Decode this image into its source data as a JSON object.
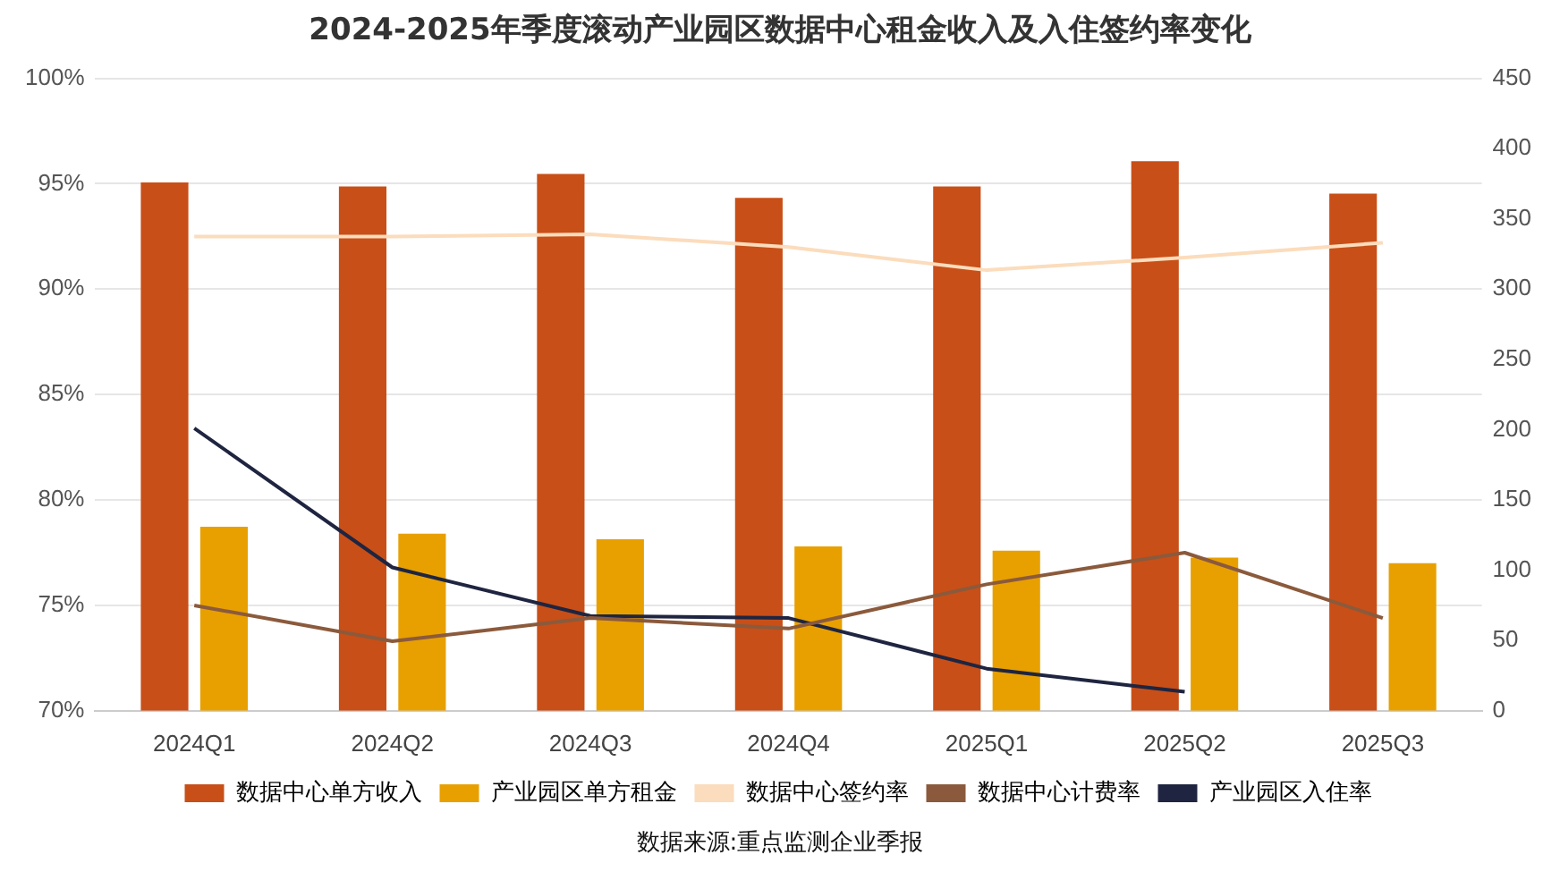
{
  "chart_data": {
    "type": "bar",
    "title": "2024-2025年季度滚动产业园区数据中心租金收入及入住签约率变化",
    "categories": [
      "2024Q1",
      "2024Q2",
      "2024Q3",
      "2024Q4",
      "2025Q1",
      "2025Q2",
      "2025Q3"
    ],
    "series": [
      {
        "name": "数据中心单方收入",
        "axis": "y2",
        "color": "#c84f18",
        "values": [
          376,
          373,
          382,
          365,
          373,
          391,
          368
        ]
      },
      {
        "name": "产业园区单方租金",
        "axis": "y2",
        "color": "#e8a000",
        "values": [
          131,
          126,
          122,
          117,
          114,
          109,
          105
        ]
      },
      {
        "name": "数据中心签约率",
        "type": "line",
        "color": "#fbdcbc",
        "values": [
          92.5,
          92.5,
          92.6,
          92.0,
          90.9,
          91.5,
          92.2
        ]
      },
      {
        "name": "数据中心计费率",
        "type": "line",
        "color": "#8b5a3c",
        "values": [
          75.0,
          73.3,
          74.4,
          73.9,
          76.0,
          77.5,
          74.4
        ]
      },
      {
        "name": "产业园区入住率",
        "type": "line",
        "color": "#1f2540",
        "values": [
          83.4,
          76.8,
          74.5,
          74.4,
          72.0,
          70.9,
          null
        ]
      }
    ],
    "ylim": [
      70,
      100
    ],
    "yticks": [
      {
        "value": 70,
        "label": "70%"
      },
      {
        "value": 75,
        "label": "75%"
      },
      {
        "value": 80,
        "label": "80%"
      },
      {
        "value": 85,
        "label": "85%"
      },
      {
        "value": 90,
        "label": "90%"
      },
      {
        "value": 95,
        "label": "95%"
      },
      {
        "value": 100,
        "label": "100%"
      }
    ],
    "y2lim": [
      0,
      450
    ],
    "y2ticks": [
      0,
      50,
      100,
      150,
      200,
      250,
      300,
      350,
      400,
      450
    ],
    "grid": "y",
    "legend": "bottom",
    "marker": "none",
    "line_style": "solid",
    "annotations": [
      "数据来源:重点监测企业季报"
    ]
  }
}
